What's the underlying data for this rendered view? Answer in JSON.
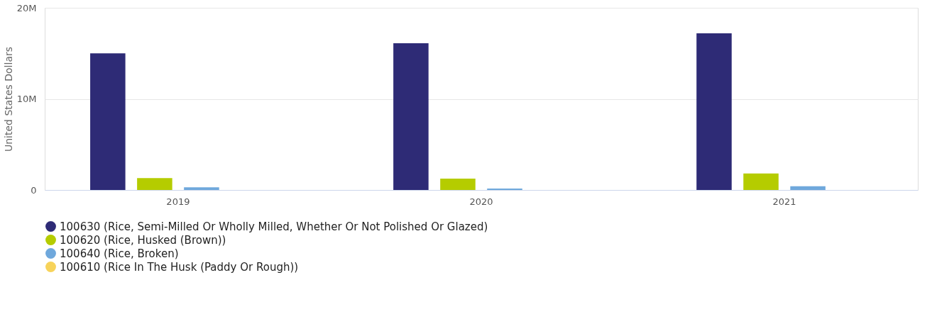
{
  "chart_data": {
    "type": "bar",
    "ylabel": "United States Dollars",
    "categories": [
      "2019",
      "2020",
      "2021"
    ],
    "series": [
      {
        "name": "100630 (Rice, Semi-Milled Or Wholly Milled, Whether Or Not Polished Or Glazed)",
        "color": "#2e2b76",
        "values": [
          15000000,
          16100000,
          17200000
        ]
      },
      {
        "name": "100620 (Rice, Husked (Brown))",
        "color": "#b5cc00",
        "values": [
          1300000,
          1250000,
          1800000
        ]
      },
      {
        "name": "100640 (Rice, Broken)",
        "color": "#6fa8dc",
        "values": [
          300000,
          150000,
          400000
        ]
      },
      {
        "name": "100610 (Rice In The Husk (Paddy Or Rough))",
        "color": "#f7d35a",
        "values": [
          0,
          0,
          0
        ]
      }
    ],
    "ylim": [
      0,
      20000000
    ],
    "yticks": [
      0,
      {
        "value": 10000000,
        "label": "10M"
      },
      {
        "value": 20000000,
        "label": "20M"
      }
    ],
    "grid": "y",
    "legend": "bottom"
  }
}
